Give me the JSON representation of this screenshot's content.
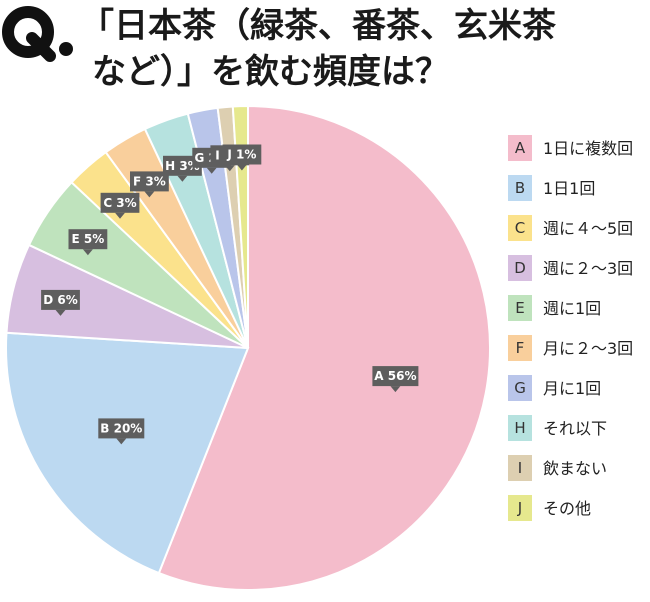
{
  "header": {
    "q_mark": "Q.",
    "title_line1": "「日本茶（緑茶、番茶、玄米茶",
    "title_line2": "など）」を飲む頻度は？"
  },
  "chart_data": {
    "type": "pie",
    "title": "「日本茶（緑茶、番茶、玄米茶など）」を飲む頻度は？",
    "legend_position": "right",
    "slices": [
      {
        "letter": "A",
        "label": "1日に複数回",
        "value": 56,
        "data_label": "A 56%",
        "color": "#f4bccb"
      },
      {
        "letter": "B",
        "label": "1日1回",
        "value": 20,
        "data_label": "B 20%",
        "color": "#bcd9f1"
      },
      {
        "letter": "D",
        "label": "週に２〜3回",
        "value": 6,
        "data_label": "D 6%",
        "color": "#d7bfe0"
      },
      {
        "letter": "E",
        "label": "週に1回",
        "value": 5,
        "data_label": "E 5%",
        "color": "#bfe3bd"
      },
      {
        "letter": "C",
        "label": "週に４〜5回",
        "value": 3,
        "data_label": "C 3%",
        "color": "#fbe28c"
      },
      {
        "letter": "F",
        "label": "月に２〜3回",
        "value": 3,
        "data_label": "F 3%",
        "color": "#f9cf9c"
      },
      {
        "letter": "H",
        "label": "それ以下",
        "value": 3,
        "data_label": "H 3%",
        "color": "#b6e2df"
      },
      {
        "letter": "G",
        "label": "月に1回",
        "value": 2,
        "data_label": "G 2%",
        "color": "#b9c5ea"
      },
      {
        "letter": "I",
        "label": "飲まない",
        "value": 1,
        "data_label": "I 1%",
        "color": "#ddcfb1"
      },
      {
        "letter": "J",
        "label": "その他",
        "value": 1,
        "data_label": "J 1%",
        "color": "#e6e88e"
      }
    ],
    "legend": [
      {
        "letter": "A",
        "label": "1日に複数回",
        "color": "#f4bccb"
      },
      {
        "letter": "B",
        "label": "1日1回",
        "color": "#bcd9f1"
      },
      {
        "letter": "C",
        "label": "週に４〜5回",
        "color": "#fbe28c"
      },
      {
        "letter": "D",
        "label": "週に２〜3回",
        "color": "#d7bfe0"
      },
      {
        "letter": "E",
        "label": "週に1回",
        "color": "#bfe3bd"
      },
      {
        "letter": "F",
        "label": "月に２〜3回",
        "color": "#f9cf9c"
      },
      {
        "letter": "G",
        "label": "月に1回",
        "color": "#b9c5ea"
      },
      {
        "letter": "H",
        "label": "それ以下",
        "color": "#b6e2df"
      },
      {
        "letter": "I",
        "label": "飲まない",
        "color": "#ddcfb1"
      },
      {
        "letter": "J",
        "label": "その他",
        "color": "#e6e88e"
      }
    ]
  }
}
